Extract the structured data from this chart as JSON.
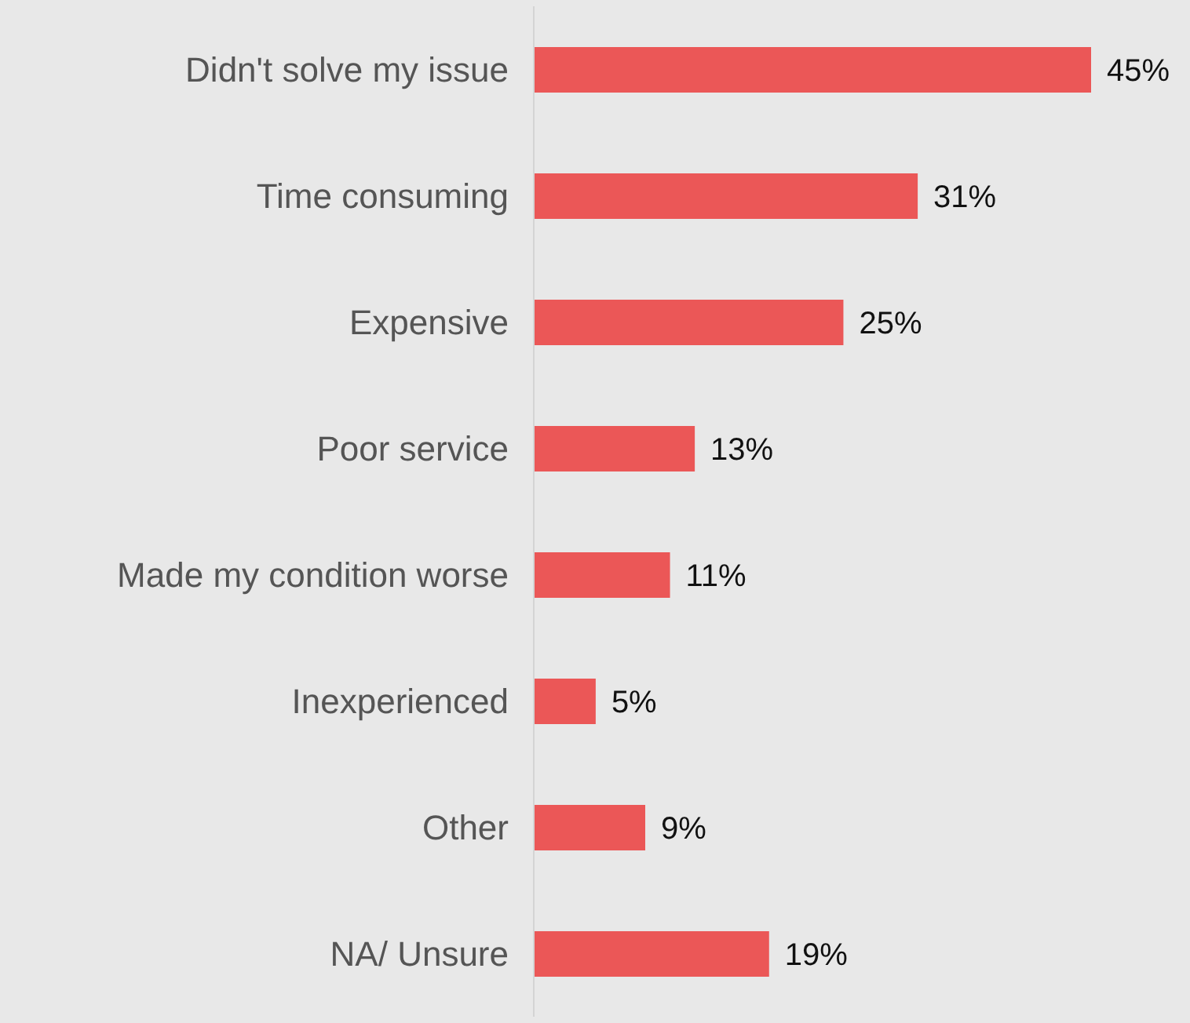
{
  "chart_data": {
    "type": "bar",
    "orientation": "horizontal",
    "categories": [
      "Didn't solve my issue",
      "Time consuming",
      "Expensive",
      "Poor service",
      "Made my condition worse",
      "Inexperienced",
      "Other",
      "NA/ Unsure"
    ],
    "values": [
      45,
      31,
      25,
      13,
      11,
      5,
      9,
      19
    ],
    "value_labels": [
      "45%",
      "31%",
      "25%",
      "13%",
      "11%",
      "5%",
      "9%",
      "19%"
    ],
    "color": "#eb5757"
  }
}
